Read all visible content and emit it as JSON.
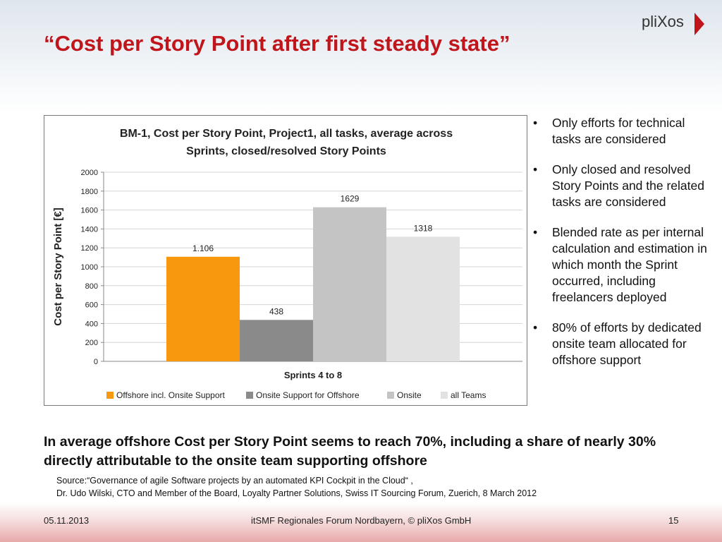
{
  "slide": {
    "title": "“Cost per Story Point after first steady state”",
    "logo_text": "pliXos",
    "bullets": [
      "Only efforts for technical tasks are considered",
      "Only closed and resolved Story Points and the related tasks are considered",
      "Blended rate as per internal calculation and estimation in which month the Sprint occurred, including freelancers deployed",
      "80% of efforts by dedicated onsite team allocated for offshore support"
    ],
    "summary": "In average offshore Cost per Story Point seems to reach 70%, including a share of nearly 30% directly attributable to the onsite team supporting offshore",
    "source_line1": "Source:“Governance of agile Software projects by an automated KPI Cockpit in the Cloud“ ,",
    "source_line2": "Dr. Udo Wilski, CTO and Member of the Board, Loyalty Partner Solutions, Swiss IT Sourcing Forum, Zuerich, 8 March 2012",
    "footer_date": "05.11.2013",
    "footer_center": "itSMF Regionales Forum Nordbayern, © pliXos GmbH",
    "footer_page": "15",
    "colors": {
      "title": "#c0161b",
      "logo_arrow": "#c0161b"
    }
  },
  "chart_data": {
    "type": "bar",
    "title_lines": [
      "BM-1, Cost per Story Point, Project1, all tasks, average across",
      "Sprints, closed/resolved Story Points"
    ],
    "xlabel": "Sprints 4 to 8",
    "ylabel": "Cost per Story Point [€]",
    "ylim": [
      0,
      2000
    ],
    "yticks": [
      0,
      200,
      400,
      600,
      800,
      1000,
      1200,
      1400,
      1600,
      1800,
      2000
    ],
    "grid": true,
    "legend_position": "bottom",
    "series": [
      {
        "name": "Offshore incl. Onsite Support",
        "value": 1106,
        "label": "1.106",
        "color": "#f7980f"
      },
      {
        "name": "Onsite Support for Offshore",
        "value": 438,
        "label": "438",
        "color": "#8a8a8a"
      },
      {
        "name": "Onsite",
        "value": 1629,
        "label": "1629",
        "color": "#c4c4c4"
      },
      {
        "name": "all Teams",
        "value": 1318,
        "label": "1318",
        "color": "#e2e2e2"
      }
    ]
  }
}
